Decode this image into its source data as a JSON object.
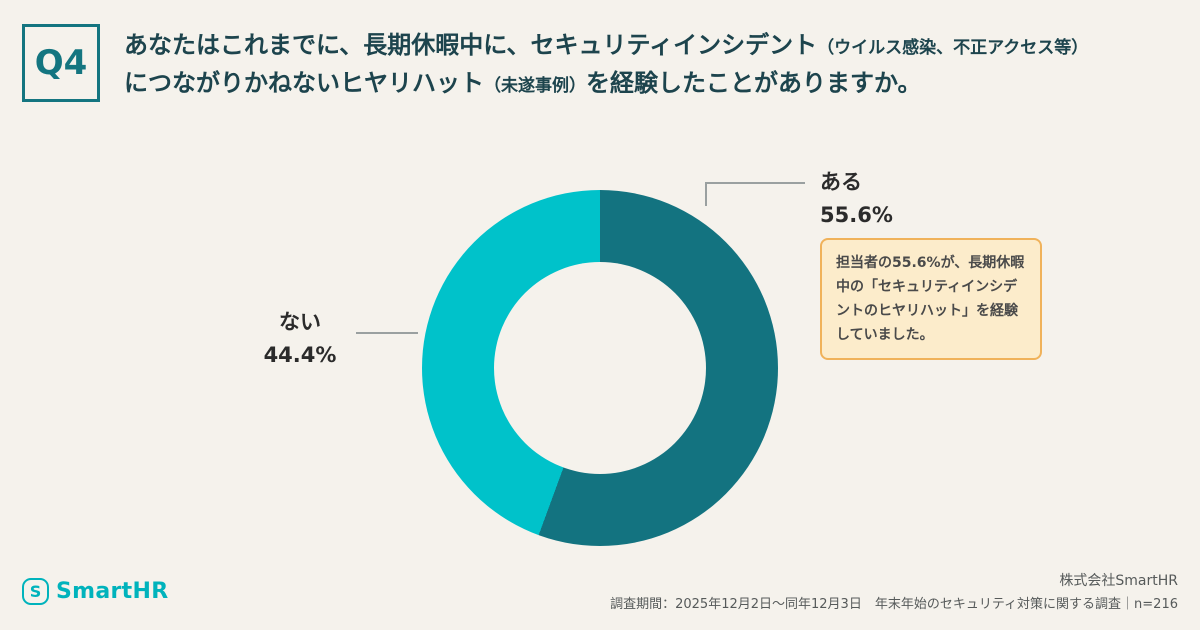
{
  "question": {
    "badge": "Q4",
    "seg1": "あなたはこれまでに、長期休暇中に、セキュリティインシデント",
    "seg2": "（ウイルス感染、不正アクセス等）",
    "seg3": "につながりかねないヒヤリハット",
    "seg4": "（未遂事例）",
    "seg5": "を経験したことがありますか。"
  },
  "chart_data": {
    "type": "pie",
    "donut": true,
    "labels": [
      "ある",
      "ない"
    ],
    "values": [
      55.6,
      44.4
    ],
    "value_labels": [
      "55.6%",
      "44.4%"
    ],
    "colors": [
      "#137380",
      "#00c2ca"
    ],
    "start_angle_deg": 0,
    "direction": "clockwise",
    "title": "",
    "legend_position": "none",
    "background": "#f5f2ec"
  },
  "callout": {
    "text": "担当者の55.6%が、長期休暇中の「セキュリティインシデントのヒヤリハット」を経験していました。"
  },
  "footer": {
    "logo_glyph": "S",
    "logo_text": "SmartHR",
    "company": "株式会社SmartHR",
    "survey_note": "調査期間：2025年12月2日〜同年12月3日　年末年始のセキュリティ対策に関する調査｜n=216"
  }
}
